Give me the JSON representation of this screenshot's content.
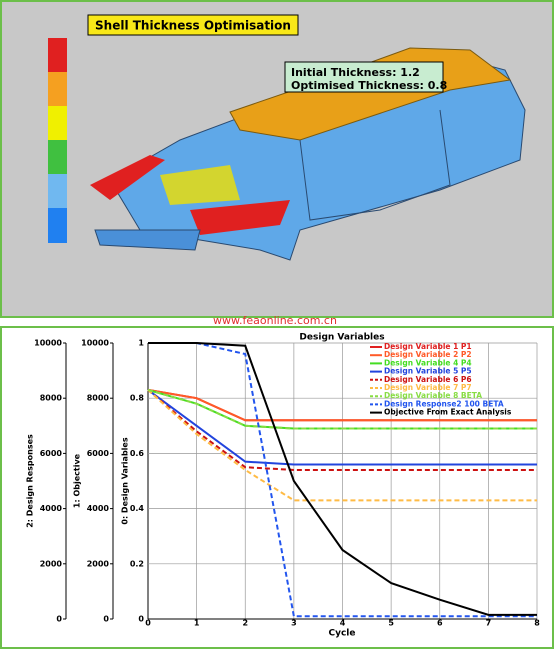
{
  "render": {
    "title": "Shell Thickness Optimisation",
    "annotation": [
      "Initial Thickness: 1.2",
      "Optimised Thickness: 0.8"
    ]
  },
  "watermark": "www.feaonline.com.cn",
  "chart_data": {
    "type": "line",
    "title": "Design Variables",
    "x_label": "Cycle",
    "x": [
      0,
      1,
      2,
      3,
      4,
      5,
      6,
      7,
      8
    ],
    "xlim": [
      0,
      8
    ],
    "xticks": [
      0,
      1,
      2,
      3,
      4,
      5,
      6,
      7,
      8
    ],
    "grid": true,
    "y_axes": [
      {
        "label": "0: Design Variables",
        "lim": [
          0,
          1
        ],
        "ticks": [
          0,
          0.2,
          0.4,
          0.6,
          0.8,
          1
        ]
      },
      {
        "label": "1: Objective",
        "lim": [
          0,
          10000
        ],
        "ticks": [
          0,
          2000,
          4000,
          6000,
          8000,
          10000
        ]
      },
      {
        "label": "2: Design Responses",
        "lim": [
          0,
          10000
        ],
        "ticks": [
          0,
          2000,
          4000,
          6000,
          8000,
          10000
        ]
      }
    ],
    "series": [
      {
        "name": "Design Variable 1 P1",
        "color": "#e02020",
        "dash": false,
        "axis": 0,
        "values": [
          0.83,
          0.8,
          0.72,
          0.72,
          0.72,
          0.72,
          0.72,
          0.72,
          0.72
        ]
      },
      {
        "name": "Design Variable 2 P2",
        "color": "#ff5a28",
        "dash": false,
        "axis": 0,
        "values": [
          0.83,
          0.8,
          0.72,
          0.72,
          0.72,
          0.72,
          0.72,
          0.72,
          0.72
        ]
      },
      {
        "name": "Design Variable 4 P4",
        "color": "#44dd22",
        "dash": false,
        "axis": 0,
        "values": [
          0.83,
          0.78,
          0.7,
          0.69,
          0.69,
          0.69,
          0.69,
          0.69,
          0.69
        ]
      },
      {
        "name": "Design Variable 5 P5",
        "color": "#2244dd",
        "dash": false,
        "axis": 0,
        "values": [
          0.83,
          0.7,
          0.57,
          0.56,
          0.56,
          0.56,
          0.56,
          0.56,
          0.56
        ]
      },
      {
        "name": "Design Variable 6 P6",
        "color": "#cc1111",
        "dash": true,
        "axis": 0,
        "values": [
          0.83,
          0.68,
          0.55,
          0.54,
          0.54,
          0.54,
          0.54,
          0.54,
          0.54
        ]
      },
      {
        "name": "Design Variable 7 P7",
        "color": "#ffbb44",
        "dash": true,
        "axis": 0,
        "values": [
          0.83,
          0.67,
          0.54,
          0.43,
          0.43,
          0.43,
          0.43,
          0.43,
          0.43
        ]
      },
      {
        "name": "Design Variable 8 BETA",
        "color": "#88dd44",
        "dash": true,
        "axis": 0,
        "values": [
          0.83,
          0.78,
          0.7,
          0.69,
          0.69,
          0.69,
          0.69,
          0.69,
          0.69
        ]
      },
      {
        "name": "Design Response2 100 BETA",
        "color": "#2255ee",
        "dash": true,
        "axis": 2,
        "values": [
          10000,
          10000,
          9600,
          100,
          100,
          100,
          100,
          100,
          100
        ]
      },
      {
        "name": "Objective From Exact Analysis",
        "color": "#000000",
        "dash": false,
        "axis": 1,
        "values": [
          10000,
          10000,
          9900,
          5000,
          2500,
          1300,
          700,
          150,
          150
        ]
      }
    ]
  }
}
